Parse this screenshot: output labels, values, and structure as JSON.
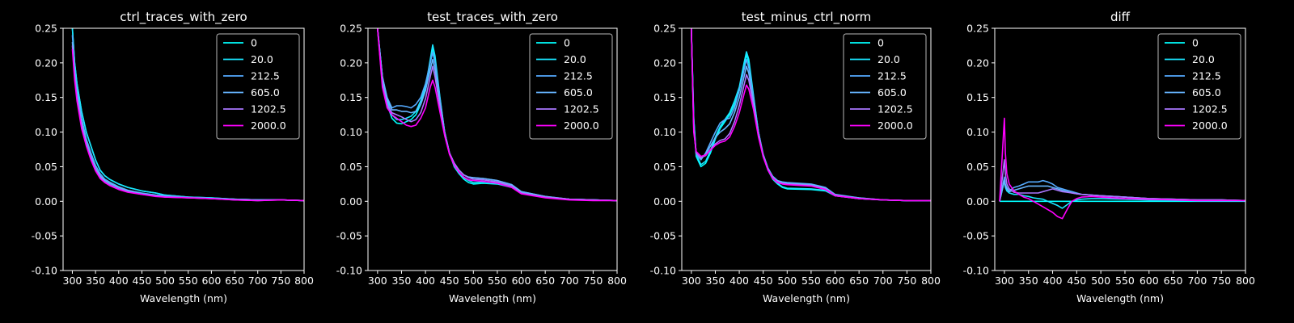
{
  "figure": {
    "background": "#000000",
    "series_colors": [
      "#00ffff",
      "#19e6ff",
      "#55aaff",
      "#66b4ff",
      "#aa77ff",
      "#ff00ff"
    ]
  },
  "chart_data": [
    {
      "type": "line",
      "title": "ctrl_traces_with_zero",
      "xlabel": "Wavelength (nm)",
      "ylabel": "",
      "xlim": [
        280,
        800
      ],
      "ylim": [
        -0.1,
        0.25
      ],
      "xticks": [
        300,
        350,
        400,
        450,
        500,
        550,
        600,
        650,
        700,
        750,
        800
      ],
      "yticks": [
        -0.1,
        -0.05,
        0.0,
        0.05,
        0.1,
        0.15,
        0.2,
        0.25
      ],
      "legend_position": "top-right",
      "grid": false,
      "x": [
        300,
        305,
        310,
        320,
        330,
        340,
        350,
        360,
        370,
        380,
        400,
        420,
        450,
        480,
        500,
        550,
        600,
        650,
        700,
        750,
        800
      ],
      "series": [
        {
          "name": "0",
          "values": [
            0.25,
            0.2,
            0.17,
            0.13,
            0.1,
            0.08,
            0.06,
            0.045,
            0.037,
            0.032,
            0.025,
            0.02,
            0.015,
            0.012,
            0.009,
            0.006,
            0.005,
            0.003,
            0.002,
            0.002,
            0.001
          ]
        },
        {
          "name": "20.0",
          "values": [
            0.25,
            0.2,
            0.17,
            0.13,
            0.1,
            0.08,
            0.06,
            0.045,
            0.037,
            0.032,
            0.025,
            0.02,
            0.015,
            0.012,
            0.009,
            0.006,
            0.005,
            0.003,
            0.002,
            0.002,
            0.001
          ]
        },
        {
          "name": "212.5",
          "values": [
            0.24,
            0.19,
            0.16,
            0.12,
            0.09,
            0.07,
            0.052,
            0.04,
            0.032,
            0.028,
            0.021,
            0.016,
            0.012,
            0.009,
            0.008,
            0.006,
            0.004,
            0.003,
            0.002,
            0.002,
            0.001
          ]
        },
        {
          "name": "605.0",
          "values": [
            0.23,
            0.185,
            0.155,
            0.115,
            0.085,
            0.065,
            0.048,
            0.037,
            0.03,
            0.026,
            0.02,
            0.015,
            0.011,
            0.008,
            0.007,
            0.005,
            0.004,
            0.003,
            0.002,
            0.002,
            0.001
          ]
        },
        {
          "name": "1202.5",
          "values": [
            0.225,
            0.18,
            0.15,
            0.11,
            0.082,
            0.062,
            0.046,
            0.035,
            0.028,
            0.024,
            0.018,
            0.014,
            0.01,
            0.008,
            0.006,
            0.005,
            0.004,
            0.002,
            0.001,
            0.002,
            0.001
          ]
        },
        {
          "name": "2000.0",
          "values": [
            0.22,
            0.175,
            0.145,
            0.105,
            0.08,
            0.06,
            0.044,
            0.033,
            0.027,
            0.023,
            0.017,
            0.013,
            0.01,
            0.007,
            0.006,
            0.005,
            0.004,
            0.002,
            0.001,
            0.002,
            0.001
          ]
        }
      ]
    },
    {
      "type": "line",
      "title": "test_traces_with_zero",
      "xlabel": "Wavelength (nm)",
      "ylabel": "",
      "xlim": [
        280,
        800
      ],
      "ylim": [
        -0.1,
        0.25
      ],
      "xticks": [
        300,
        350,
        400,
        450,
        500,
        550,
        600,
        650,
        700,
        750,
        800
      ],
      "yticks": [
        -0.1,
        -0.05,
        0.0,
        0.05,
        0.1,
        0.15,
        0.2,
        0.25
      ],
      "legend_position": "top-right",
      "grid": false,
      "x": [
        300,
        310,
        320,
        330,
        340,
        350,
        360,
        370,
        380,
        390,
        400,
        410,
        415,
        420,
        430,
        440,
        450,
        460,
        470,
        480,
        490,
        500,
        520,
        550,
        580,
        600,
        650,
        700,
        750,
        800
      ],
      "series": [
        {
          "name": "0",
          "values": [
            0.25,
            0.18,
            0.14,
            0.12,
            0.113,
            0.112,
            0.115,
            0.118,
            0.125,
            0.14,
            0.16,
            0.2,
            0.222,
            0.205,
            0.15,
            0.1,
            0.07,
            0.05,
            0.04,
            0.032,
            0.027,
            0.025,
            0.026,
            0.025,
            0.02,
            0.013,
            0.006,
            0.003,
            0.002,
            0.001
          ]
        },
        {
          "name": "20.0",
          "values": [
            0.25,
            0.18,
            0.145,
            0.125,
            0.118,
            0.118,
            0.12,
            0.123,
            0.13,
            0.145,
            0.165,
            0.205,
            0.226,
            0.21,
            0.152,
            0.1,
            0.07,
            0.052,
            0.042,
            0.034,
            0.03,
            0.027,
            0.028,
            0.027,
            0.022,
            0.013,
            0.006,
            0.003,
            0.002,
            0.001
          ]
        },
        {
          "name": "212.5",
          "values": [
            0.25,
            0.18,
            0.15,
            0.135,
            0.138,
            0.138,
            0.137,
            0.135,
            0.14,
            0.15,
            0.17,
            0.2,
            0.215,
            0.2,
            0.148,
            0.1,
            0.07,
            0.055,
            0.045,
            0.038,
            0.035,
            0.034,
            0.033,
            0.03,
            0.024,
            0.014,
            0.007,
            0.003,
            0.002,
            0.001
          ]
        },
        {
          "name": "605.0",
          "values": [
            0.25,
            0.18,
            0.148,
            0.132,
            0.132,
            0.13,
            0.13,
            0.128,
            0.13,
            0.14,
            0.16,
            0.19,
            0.205,
            0.19,
            0.143,
            0.1,
            0.07,
            0.055,
            0.045,
            0.038,
            0.035,
            0.034,
            0.033,
            0.03,
            0.024,
            0.014,
            0.007,
            0.003,
            0.002,
            0.001
          ]
        },
        {
          "name": "1202.5",
          "values": [
            0.25,
            0.17,
            0.14,
            0.128,
            0.125,
            0.122,
            0.118,
            0.115,
            0.118,
            0.128,
            0.148,
            0.18,
            0.195,
            0.18,
            0.138,
            0.098,
            0.07,
            0.055,
            0.045,
            0.038,
            0.034,
            0.032,
            0.031,
            0.028,
            0.022,
            0.012,
            0.006,
            0.003,
            0.002,
            0.001
          ]
        },
        {
          "name": "2000.0",
          "values": [
            0.25,
            0.165,
            0.135,
            0.125,
            0.12,
            0.115,
            0.11,
            0.108,
            0.11,
            0.12,
            0.135,
            0.165,
            0.175,
            0.165,
            0.13,
            0.095,
            0.068,
            0.052,
            0.042,
            0.035,
            0.031,
            0.03,
            0.029,
            0.026,
            0.02,
            0.011,
            0.005,
            0.002,
            0.001,
            0.001
          ]
        }
      ]
    },
    {
      "type": "line",
      "title": "test_minus_ctrl_norm",
      "xlabel": "Wavelength (nm)",
      "ylabel": "",
      "xlim": [
        280,
        800
      ],
      "ylim": [
        -0.1,
        0.25
      ],
      "xticks": [
        300,
        350,
        400,
        450,
        500,
        550,
        600,
        650,
        700,
        750,
        800
      ],
      "yticks": [
        -0.1,
        -0.05,
        0.0,
        0.05,
        0.1,
        0.15,
        0.2,
        0.25
      ],
      "legend_position": "top-right",
      "grid": false,
      "x": [
        300,
        305,
        310,
        320,
        330,
        340,
        350,
        360,
        370,
        380,
        390,
        400,
        410,
        415,
        420,
        430,
        440,
        450,
        460,
        470,
        480,
        490,
        500,
        550,
        580,
        600,
        650,
        700,
        750,
        800
      ],
      "series": [
        {
          "name": "0",
          "values": [
            0.25,
            0.12,
            0.065,
            0.05,
            0.055,
            0.07,
            0.09,
            0.105,
            0.115,
            0.125,
            0.14,
            0.16,
            0.195,
            0.212,
            0.2,
            0.15,
            0.1,
            0.065,
            0.045,
            0.032,
            0.025,
            0.02,
            0.018,
            0.017,
            0.015,
            0.008,
            0.004,
            0.002,
            0.001,
            0.001
          ]
        },
        {
          "name": "20.0",
          "values": [
            0.25,
            0.12,
            0.068,
            0.053,
            0.058,
            0.073,
            0.093,
            0.108,
            0.118,
            0.128,
            0.145,
            0.165,
            0.2,
            0.216,
            0.205,
            0.152,
            0.1,
            0.066,
            0.046,
            0.033,
            0.026,
            0.021,
            0.019,
            0.018,
            0.016,
            0.008,
            0.004,
            0.002,
            0.001,
            0.001
          ]
        },
        {
          "name": "212.5",
          "values": [
            0.25,
            0.11,
            0.068,
            0.06,
            0.07,
            0.085,
            0.1,
            0.113,
            0.118,
            0.12,
            0.135,
            0.16,
            0.19,
            0.205,
            0.193,
            0.147,
            0.1,
            0.068,
            0.048,
            0.036,
            0.03,
            0.028,
            0.027,
            0.025,
            0.02,
            0.01,
            0.005,
            0.002,
            0.001,
            0.001
          ]
        },
        {
          "name": "605.0",
          "values": [
            0.25,
            0.11,
            0.07,
            0.062,
            0.068,
            0.08,
            0.092,
            0.1,
            0.105,
            0.112,
            0.128,
            0.15,
            0.18,
            0.195,
            0.185,
            0.142,
            0.098,
            0.067,
            0.047,
            0.035,
            0.029,
            0.027,
            0.026,
            0.024,
            0.019,
            0.009,
            0.005,
            0.002,
            0.001,
            0.001
          ]
        },
        {
          "name": "1202.5",
          "values": [
            0.25,
            0.105,
            0.07,
            0.063,
            0.066,
            0.075,
            0.083,
            0.088,
            0.09,
            0.098,
            0.115,
            0.138,
            0.168,
            0.183,
            0.175,
            0.138,
            0.096,
            0.066,
            0.046,
            0.034,
            0.028,
            0.026,
            0.025,
            0.023,
            0.018,
            0.009,
            0.004,
            0.002,
            0.001,
            0.001
          ]
        },
        {
          "name": "2000.0",
          "values": [
            0.25,
            0.1,
            0.072,
            0.065,
            0.067,
            0.074,
            0.081,
            0.085,
            0.087,
            0.093,
            0.108,
            0.128,
            0.155,
            0.168,
            0.162,
            0.132,
            0.093,
            0.064,
            0.045,
            0.033,
            0.027,
            0.025,
            0.024,
            0.022,
            0.017,
            0.008,
            0.004,
            0.002,
            0.001,
            0.001
          ]
        }
      ]
    },
    {
      "type": "line",
      "title": "diff",
      "xlabel": "Wavelength (nm)",
      "ylabel": "",
      "xlim": [
        280,
        800
      ],
      "ylim": [
        -0.1,
        0.25
      ],
      "xticks": [
        300,
        350,
        400,
        450,
        500,
        550,
        600,
        650,
        700,
        750,
        800
      ],
      "yticks": [
        -0.1,
        -0.05,
        0.0,
        0.05,
        0.1,
        0.15,
        0.2,
        0.25
      ],
      "legend_position": "top-right",
      "grid": false,
      "x": [
        290,
        300,
        302,
        305,
        310,
        320,
        330,
        340,
        350,
        360,
        370,
        380,
        390,
        400,
        410,
        420,
        430,
        440,
        450,
        460,
        480,
        500,
        550,
        600,
        650,
        700,
        750,
        800
      ],
      "series": [
        {
          "name": "0",
          "values": [
            0.0,
            0.0,
            0.0,
            0.0,
            0.0,
            0.0,
            0.0,
            0.0,
            0.0,
            0.0,
            0.0,
            0.0,
            0.0,
            0.0,
            0.0,
            0.0,
            0.0,
            0.0,
            0.0,
            0.0,
            0.0,
            0.0,
            0.0,
            0.0,
            0.0,
            0.0,
            0.0,
            0.0
          ]
        },
        {
          "name": "20.0",
          "values": [
            0.0,
            0.03,
            0.02,
            0.015,
            0.012,
            0.01,
            0.01,
            0.008,
            0.007,
            0.005,
            0.004,
            0.003,
            0.0,
            -0.003,
            -0.006,
            -0.01,
            -0.005,
            0.0,
            0.002,
            0.003,
            0.004,
            0.004,
            0.003,
            0.002,
            0.002,
            0.001,
            0.001,
            0.001
          ]
        },
        {
          "name": "212.5",
          "values": [
            0.0,
            0.035,
            0.025,
            0.02,
            0.015,
            0.02,
            0.022,
            0.025,
            0.028,
            0.028,
            0.028,
            0.03,
            0.028,
            0.025,
            0.02,
            0.018,
            0.016,
            0.014,
            0.012,
            0.01,
            0.009,
            0.008,
            0.006,
            0.004,
            0.003,
            0.002,
            0.002,
            0.001
          ]
        },
        {
          "name": "605.0",
          "values": [
            0.0,
            0.03,
            0.022,
            0.018,
            0.014,
            0.016,
            0.018,
            0.02,
            0.022,
            0.022,
            0.022,
            0.022,
            0.022,
            0.02,
            0.018,
            0.016,
            0.014,
            0.012,
            0.011,
            0.01,
            0.009,
            0.008,
            0.006,
            0.004,
            0.003,
            0.002,
            0.002,
            0.001
          ]
        },
        {
          "name": "1202.5",
          "values": [
            0.0,
            0.06,
            0.04,
            0.025,
            0.018,
            0.013,
            0.012,
            0.012,
            0.012,
            0.012,
            0.012,
            0.014,
            0.016,
            0.018,
            0.016,
            0.014,
            0.013,
            0.012,
            0.011,
            0.01,
            0.009,
            0.008,
            0.006,
            0.004,
            0.003,
            0.002,
            0.002,
            0.001
          ]
        },
        {
          "name": "2000.0",
          "values": [
            0.0,
            0.12,
            0.07,
            0.04,
            0.025,
            0.015,
            0.01,
            0.006,
            0.004,
            0.0,
            -0.004,
            -0.008,
            -0.012,
            -0.016,
            -0.022,
            -0.025,
            -0.012,
            0.0,
            0.004,
            0.006,
            0.007,
            0.006,
            0.004,
            0.003,
            0.002,
            0.001,
            0.001,
            0.001
          ]
        }
      ]
    }
  ]
}
